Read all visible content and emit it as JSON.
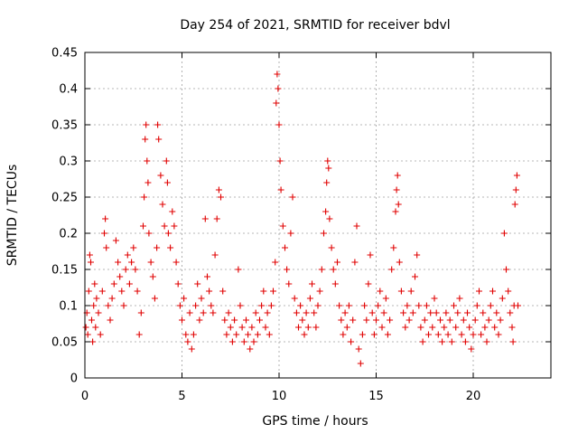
{
  "chart_data": {
    "type": "scatter",
    "title": "Day 254 of 2021, SRMTID for receiver bdvl",
    "xlabel": "GPS time / hours",
    "ylabel": "SRMTID / TECUs",
    "xlim": [
      0,
      24
    ],
    "ylim": [
      0,
      0.45
    ],
    "xticks": [
      0,
      5,
      10,
      15,
      20
    ],
    "xtick_labels": [
      "0",
      "5",
      "10",
      "15",
      "20"
    ],
    "yticks": [
      0,
      0.05,
      0.1,
      0.15,
      0.2,
      0.25,
      0.3,
      0.35,
      0.4,
      0.45
    ],
    "ytick_labels": [
      "0",
      "0.05",
      "0.1",
      "0.15",
      "0.2",
      "0.25",
      "0.3",
      "0.35",
      "0.4",
      "0.45"
    ],
    "grid": true,
    "marker": "+",
    "color": "#e00000",
    "series": [
      {
        "name": "SRMTID",
        "points": [
          [
            0.05,
            0.07
          ],
          [
            0.1,
            0.09
          ],
          [
            0.15,
            0.06
          ],
          [
            0.2,
            0.12
          ],
          [
            0.25,
            0.17
          ],
          [
            0.3,
            0.16
          ],
          [
            0.35,
            0.08
          ],
          [
            0.4,
            0.05
          ],
          [
            0.45,
            0.1
          ],
          [
            0.5,
            0.13
          ],
          [
            0.55,
            0.07
          ],
          [
            0.6,
            0.11
          ],
          [
            0.7,
            0.09
          ],
          [
            0.8,
            0.06
          ],
          [
            0.9,
            0.12
          ],
          [
            1.0,
            0.2
          ],
          [
            1.05,
            0.22
          ],
          [
            1.1,
            0.18
          ],
          [
            1.2,
            0.1
          ],
          [
            1.3,
            0.08
          ],
          [
            1.4,
            0.11
          ],
          [
            1.5,
            0.13
          ],
          [
            1.6,
            0.19
          ],
          [
            1.7,
            0.16
          ],
          [
            1.8,
            0.14
          ],
          [
            1.9,
            0.12
          ],
          [
            2.0,
            0.1
          ],
          [
            2.1,
            0.15
          ],
          [
            2.2,
            0.17
          ],
          [
            2.3,
            0.13
          ],
          [
            2.4,
            0.16
          ],
          [
            2.5,
            0.18
          ],
          [
            2.6,
            0.15
          ],
          [
            2.7,
            0.12
          ],
          [
            2.8,
            0.06
          ],
          [
            2.9,
            0.09
          ],
          [
            3.0,
            0.21
          ],
          [
            3.05,
            0.25
          ],
          [
            3.1,
            0.33
          ],
          [
            3.15,
            0.35
          ],
          [
            3.2,
            0.3
          ],
          [
            3.25,
            0.27
          ],
          [
            3.3,
            0.2
          ],
          [
            3.4,
            0.16
          ],
          [
            3.5,
            0.14
          ],
          [
            3.6,
            0.11
          ],
          [
            3.7,
            0.18
          ],
          [
            3.75,
            0.35
          ],
          [
            3.8,
            0.33
          ],
          [
            3.9,
            0.28
          ],
          [
            4.0,
            0.24
          ],
          [
            4.1,
            0.21
          ],
          [
            4.2,
            0.3
          ],
          [
            4.25,
            0.27
          ],
          [
            4.3,
            0.2
          ],
          [
            4.4,
            0.18
          ],
          [
            4.5,
            0.23
          ],
          [
            4.6,
            0.21
          ],
          [
            4.7,
            0.16
          ],
          [
            4.8,
            0.13
          ],
          [
            4.9,
            0.1
          ],
          [
            5.0,
            0.08
          ],
          [
            5.1,
            0.11
          ],
          [
            5.2,
            0.06
          ],
          [
            5.3,
            0.05
          ],
          [
            5.4,
            0.09
          ],
          [
            5.5,
            0.04
          ],
          [
            5.6,
            0.06
          ],
          [
            5.7,
            0.1
          ],
          [
            5.8,
            0.13
          ],
          [
            5.9,
            0.08
          ],
          [
            6.0,
            0.11
          ],
          [
            6.1,
            0.09
          ],
          [
            6.2,
            0.22
          ],
          [
            6.3,
            0.14
          ],
          [
            6.4,
            0.12
          ],
          [
            6.5,
            0.1
          ],
          [
            6.6,
            0.09
          ],
          [
            6.7,
            0.17
          ],
          [
            6.8,
            0.22
          ],
          [
            6.9,
            0.26
          ],
          [
            7.0,
            0.25
          ],
          [
            7.1,
            0.12
          ],
          [
            7.2,
            0.08
          ],
          [
            7.3,
            0.06
          ],
          [
            7.4,
            0.09
          ],
          [
            7.5,
            0.07
          ],
          [
            7.6,
            0.05
          ],
          [
            7.7,
            0.08
          ],
          [
            7.8,
            0.06
          ],
          [
            7.9,
            0.15
          ],
          [
            8.0,
            0.1
          ],
          [
            8.1,
            0.07
          ],
          [
            8.2,
            0.05
          ],
          [
            8.3,
            0.08
          ],
          [
            8.4,
            0.06
          ],
          [
            8.5,
            0.04
          ],
          [
            8.6,
            0.07
          ],
          [
            8.7,
            0.05
          ],
          [
            8.8,
            0.09
          ],
          [
            8.9,
            0.06
          ],
          [
            9.0,
            0.08
          ],
          [
            9.1,
            0.1
          ],
          [
            9.2,
            0.12
          ],
          [
            9.3,
            0.07
          ],
          [
            9.4,
            0.09
          ],
          [
            9.5,
            0.06
          ],
          [
            9.6,
            0.1
          ],
          [
            9.7,
            0.12
          ],
          [
            9.8,
            0.16
          ],
          [
            9.85,
            0.38
          ],
          [
            9.9,
            0.42
          ],
          [
            9.95,
            0.4
          ],
          [
            10.0,
            0.35
          ],
          [
            10.05,
            0.3
          ],
          [
            10.1,
            0.26
          ],
          [
            10.2,
            0.21
          ],
          [
            10.3,
            0.18
          ],
          [
            10.4,
            0.15
          ],
          [
            10.5,
            0.13
          ],
          [
            10.6,
            0.2
          ],
          [
            10.7,
            0.25
          ],
          [
            10.8,
            0.11
          ],
          [
            10.9,
            0.09
          ],
          [
            11.0,
            0.07
          ],
          [
            11.1,
            0.1
          ],
          [
            11.2,
            0.08
          ],
          [
            11.3,
            0.06
          ],
          [
            11.4,
            0.09
          ],
          [
            11.5,
            0.07
          ],
          [
            11.6,
            0.11
          ],
          [
            11.7,
            0.13
          ],
          [
            11.8,
            0.09
          ],
          [
            11.9,
            0.07
          ],
          [
            12.0,
            0.1
          ],
          [
            12.1,
            0.12
          ],
          [
            12.2,
            0.15
          ],
          [
            12.3,
            0.2
          ],
          [
            12.4,
            0.23
          ],
          [
            12.45,
            0.27
          ],
          [
            12.5,
            0.3
          ],
          [
            12.55,
            0.29
          ],
          [
            12.6,
            0.22
          ],
          [
            12.7,
            0.18
          ],
          [
            12.8,
            0.15
          ],
          [
            12.9,
            0.13
          ],
          [
            13.0,
            0.16
          ],
          [
            13.1,
            0.1
          ],
          [
            13.2,
            0.08
          ],
          [
            13.3,
            0.06
          ],
          [
            13.4,
            0.09
          ],
          [
            13.5,
            0.07
          ],
          [
            13.6,
            0.1
          ],
          [
            13.7,
            0.05
          ],
          [
            13.8,
            0.08
          ],
          [
            13.9,
            0.16
          ],
          [
            14.0,
            0.21
          ],
          [
            14.1,
            0.04
          ],
          [
            14.2,
            0.02
          ],
          [
            14.3,
            0.06
          ],
          [
            14.4,
            0.1
          ],
          [
            14.5,
            0.08
          ],
          [
            14.6,
            0.13
          ],
          [
            14.7,
            0.17
          ],
          [
            14.8,
            0.09
          ],
          [
            14.9,
            0.06
          ],
          [
            15.0,
            0.08
          ],
          [
            15.1,
            0.1
          ],
          [
            15.2,
            0.12
          ],
          [
            15.3,
            0.07
          ],
          [
            15.4,
            0.09
          ],
          [
            15.5,
            0.11
          ],
          [
            15.6,
            0.06
          ],
          [
            15.7,
            0.08
          ],
          [
            15.8,
            0.15
          ],
          [
            15.9,
            0.18
          ],
          [
            16.0,
            0.23
          ],
          [
            16.05,
            0.26
          ],
          [
            16.1,
            0.28
          ],
          [
            16.15,
            0.24
          ],
          [
            16.2,
            0.16
          ],
          [
            16.3,
            0.12
          ],
          [
            16.4,
            0.09
          ],
          [
            16.5,
            0.07
          ],
          [
            16.6,
            0.1
          ],
          [
            16.7,
            0.08
          ],
          [
            16.8,
            0.12
          ],
          [
            16.9,
            0.09
          ],
          [
            17.0,
            0.14
          ],
          [
            17.1,
            0.17
          ],
          [
            17.2,
            0.1
          ],
          [
            17.3,
            0.07
          ],
          [
            17.4,
            0.05
          ],
          [
            17.5,
            0.08
          ],
          [
            17.6,
            0.1
          ],
          [
            17.7,
            0.06
          ],
          [
            17.8,
            0.09
          ],
          [
            17.9,
            0.07
          ],
          [
            18.0,
            0.11
          ],
          [
            18.1,
            0.09
          ],
          [
            18.2,
            0.06
          ],
          [
            18.3,
            0.08
          ],
          [
            18.4,
            0.05
          ],
          [
            18.5,
            0.07
          ],
          [
            18.6,
            0.09
          ],
          [
            18.7,
            0.06
          ],
          [
            18.8,
            0.08
          ],
          [
            18.9,
            0.05
          ],
          [
            19.0,
            0.1
          ],
          [
            19.1,
            0.07
          ],
          [
            19.2,
            0.09
          ],
          [
            19.3,
            0.11
          ],
          [
            19.4,
            0.06
          ],
          [
            19.5,
            0.08
          ],
          [
            19.6,
            0.05
          ],
          [
            19.7,
            0.09
          ],
          [
            19.8,
            0.07
          ],
          [
            19.9,
            0.04
          ],
          [
            20.0,
            0.06
          ],
          [
            20.1,
            0.08
          ],
          [
            20.2,
            0.1
          ],
          [
            20.3,
            0.12
          ],
          [
            20.4,
            0.06
          ],
          [
            20.5,
            0.09
          ],
          [
            20.6,
            0.07
          ],
          [
            20.7,
            0.05
          ],
          [
            20.8,
            0.08
          ],
          [
            20.9,
            0.1
          ],
          [
            21.0,
            0.12
          ],
          [
            21.1,
            0.07
          ],
          [
            21.2,
            0.09
          ],
          [
            21.3,
            0.06
          ],
          [
            21.4,
            0.08
          ],
          [
            21.5,
            0.11
          ],
          [
            21.6,
            0.2
          ],
          [
            21.7,
            0.15
          ],
          [
            21.8,
            0.12
          ],
          [
            21.9,
            0.09
          ],
          [
            22.0,
            0.07
          ],
          [
            22.05,
            0.05
          ],
          [
            22.1,
            0.1
          ],
          [
            22.15,
            0.24
          ],
          [
            22.2,
            0.26
          ],
          [
            22.25,
            0.28
          ],
          [
            22.3,
            0.1
          ]
        ]
      }
    ]
  }
}
